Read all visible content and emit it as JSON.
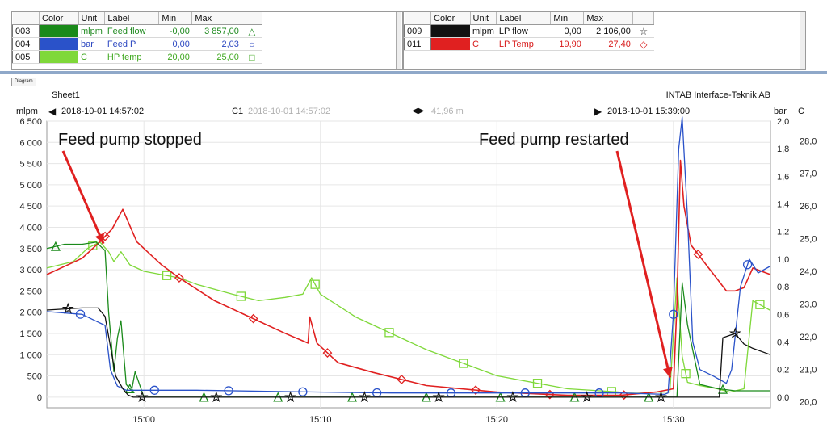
{
  "legend_left": {
    "headers": [
      "Color",
      "Unit",
      "Label",
      "Min",
      "Max"
    ],
    "rows": [
      {
        "id": "003",
        "color": "#1a8a1a",
        "unit": "mlpm",
        "label": "Feed flow",
        "min": "-0,00",
        "max": "3 857,00",
        "marker": "△",
        "text_color": "#1f8a1f"
      },
      {
        "id": "004",
        "color": "#2a52c9",
        "unit": "bar",
        "label": "Feed P",
        "min": "0,00",
        "max": "2,03",
        "marker": "○",
        "text_color": "#2a46c0"
      },
      {
        "id": "005",
        "color": "#7fd83a",
        "unit": "C",
        "label": "HP temp",
        "min": "20,00",
        "max": "25,00",
        "marker": "□",
        "text_color": "#3fa81f"
      }
    ]
  },
  "legend_right": {
    "headers": [
      "Color",
      "Unit",
      "Label",
      "Min",
      "Max"
    ],
    "rows": [
      {
        "id": "009",
        "color": "#111111",
        "unit": "mlpm",
        "label": "LP flow",
        "min": "0,00",
        "max": "2 106,00",
        "marker": "☆",
        "text_color": "#111111"
      },
      {
        "id": "011",
        "color": "#e02020",
        "unit": "C",
        "label": "LP Temp",
        "min": "19,90",
        "max": "27,40",
        "marker": "◇",
        "text_color": "#d81b1b"
      }
    ]
  },
  "diagram_tab": "Diagram",
  "sheet_name": "Sheet1",
  "company": "INTAB Interface-Teknik AB",
  "toolbar": {
    "left_unit": "mlpm",
    "start_time": "2018-10-01 14:57:02",
    "cursor_label": "C1",
    "cursor_time": "2018-10-01 14:57:02",
    "span": "41,96 m",
    "end_time": "2018-10-01 15:39:00",
    "right_unit_1": "bar",
    "right_unit_2": "C"
  },
  "chart_data": {
    "type": "line",
    "x_unit": "minutes after 14:50",
    "xlim": [
      4.5,
      45.5
    ],
    "x_ticks": [
      10,
      20,
      30,
      40
    ],
    "x_tick_labels": [
      "15:00",
      "15:10",
      "15:20",
      "15:30"
    ],
    "y_left": {
      "unit": "mlpm",
      "lim": [
        -250,
        6500
      ],
      "ticks": [
        0,
        500,
        1000,
        1500,
        2000,
        2500,
        3000,
        3500,
        4000,
        4500,
        5000,
        5500,
        6000,
        6500
      ],
      "tick_labels": [
        "0",
        "500",
        "1 000",
        "1 500",
        "2 000",
        "2 500",
        "3 000",
        "3 500",
        "4 000",
        "4 500",
        "5 000",
        "5 500",
        "6 000",
        "6 500"
      ]
    },
    "y_bar": {
      "unit": "bar",
      "lim": [
        -0.077,
        2.0
      ],
      "ticks": [
        0,
        0.2,
        0.4,
        0.6,
        0.8,
        1.0,
        1.2,
        1.4,
        1.6,
        1.8,
        2.0
      ],
      "tick_labels": [
        "0,0",
        "0,2",
        "0,4",
        "0,6",
        "0,8",
        "1,0",
        "1,2",
        "1,4",
        "1,6",
        "1,8",
        "2,0"
      ]
    },
    "y_c": {
      "unit": "C",
      "lim": [
        19.82,
        28.6
      ],
      "ticks": [
        20,
        21,
        22,
        23,
        24,
        25,
        26,
        27,
        28
      ],
      "tick_labels": [
        "20,0",
        "21,0",
        "22,0",
        "23,0",
        "24,0",
        "25,0",
        "26,0",
        "27,0",
        "28,0"
      ]
    },
    "series": [
      {
        "name": "Feed flow",
        "axis": "y_left",
        "color": "#1a8a1a",
        "marker": "triangle",
        "x": [
          4.5,
          5.5,
          6.5,
          7.3,
          7.8,
          8.0,
          8.3,
          8.5,
          8.7,
          9.0,
          9.3,
          9.5,
          10,
          12,
          15,
          20,
          25,
          30,
          35,
          40.2,
          40.5,
          40.8,
          41.5,
          42.5,
          43.5,
          45.5
        ],
        "y": [
          3500,
          3600,
          3600,
          3650,
          3450,
          2000,
          600,
          1400,
          1800,
          300,
          150,
          600,
          0,
          0,
          0,
          0,
          0,
          0,
          0,
          0,
          2700,
          1700,
          300,
          200,
          150,
          150
        ]
      },
      {
        "name": "LP flow",
        "axis": "y_left",
        "color": "#111111",
        "marker": "star",
        "x": [
          4.5,
          6.5,
          7.4,
          7.8,
          8.1,
          8.4,
          8.8,
          9.1,
          9.4,
          10,
          12,
          15,
          20,
          25,
          30,
          35,
          39.5,
          40.0,
          40.2,
          42.6,
          42.8,
          43.5,
          44.0,
          44.5,
          45.5
        ],
        "y": [
          2050,
          2100,
          2100,
          1900,
          1200,
          500,
          200,
          50,
          0,
          0,
          0,
          0,
          0,
          0,
          0,
          0,
          0,
          0,
          0,
          0,
          1400,
          1500,
          1250,
          1150,
          1000
        ]
      },
      {
        "name": "Feed P",
        "axis": "y_bar",
        "color": "#2a52c9",
        "marker": "circle",
        "x": [
          4.5,
          6.5,
          7.3,
          7.8,
          8.1,
          8.5,
          9.0,
          9.5,
          10,
          13,
          18,
          24,
          30,
          34,
          37,
          39.5,
          39.7,
          40.0,
          40.3,
          40.5,
          40.8,
          41.1,
          41.5,
          42.3,
          43.0,
          43.3,
          43.8,
          44.3,
          44.8,
          45.5
        ],
        "y": [
          0.62,
          0.6,
          0.55,
          0.52,
          0.2,
          0.08,
          0.05,
          0.05,
          0.05,
          0.05,
          0.04,
          0.03,
          0.03,
          0.03,
          0.03,
          0.02,
          0.03,
          0.6,
          1.8,
          2.03,
          1.3,
          0.4,
          0.2,
          0.15,
          0.1,
          0.2,
          0.8,
          1.0,
          0.9,
          0.95
        ]
      },
      {
        "name": "HP temp",
        "axis": "y_c",
        "color": "#7fd83a",
        "marker": "square",
        "x": [
          4.5,
          6.0,
          6.8,
          7.5,
          8.0,
          8.3,
          8.7,
          9.2,
          10,
          12,
          13,
          15,
          16.5,
          18,
          19,
          19.5,
          20,
          22,
          26,
          30,
          34,
          37,
          39,
          39.8,
          40.2,
          40.5,
          40.8,
          41.5,
          42.5,
          43.2,
          44,
          44.5,
          45.5
        ],
        "y": [
          24.1,
          24.3,
          24.7,
          24.9,
          24.6,
          24.3,
          24.6,
          24.2,
          24.0,
          23.8,
          23.6,
          23.3,
          23.1,
          23.2,
          23.3,
          23.8,
          23.3,
          22.6,
          21.6,
          20.8,
          20.4,
          20.3,
          20.3,
          20.3,
          23.8,
          21.4,
          20.6,
          20.5,
          20.4,
          20.3,
          20.4,
          23.1,
          22.8
        ]
      },
      {
        "name": "LP Temp",
        "axis": "y_c",
        "color": "#e02020",
        "marker": "diamond",
        "x": [
          4.5,
          6.5,
          7.5,
          8.2,
          8.8,
          9.2,
          9.6,
          10,
          11,
          12,
          14,
          16,
          18,
          19.3,
          19.4,
          19.8,
          21,
          23,
          26,
          30,
          34,
          37,
          39,
          40.0,
          40.2,
          40.4,
          40.6,
          41.0,
          42.0,
          43.0,
          43.5,
          44.0,
          44.5,
          45.0,
          45.5
        ],
        "y": [
          23.9,
          24.4,
          24.9,
          25.3,
          25.9,
          25.4,
          24.9,
          24.7,
          24.2,
          23.8,
          23.1,
          22.6,
          22.1,
          21.8,
          22.6,
          21.8,
          21.2,
          20.9,
          20.5,
          20.3,
          20.2,
          20.2,
          20.3,
          20.4,
          23.0,
          27.4,
          26.0,
          24.8,
          24.1,
          23.4,
          23.4,
          23.5,
          24.1,
          24.0,
          23.9
        ]
      }
    ],
    "annotations": [
      {
        "text": "Feed pump stopped",
        "x": 7.8,
        "y_left": 3500
      },
      {
        "text": "Feed pump restarted",
        "x": 39.9,
        "y_left": 350
      }
    ],
    "grid": true
  }
}
